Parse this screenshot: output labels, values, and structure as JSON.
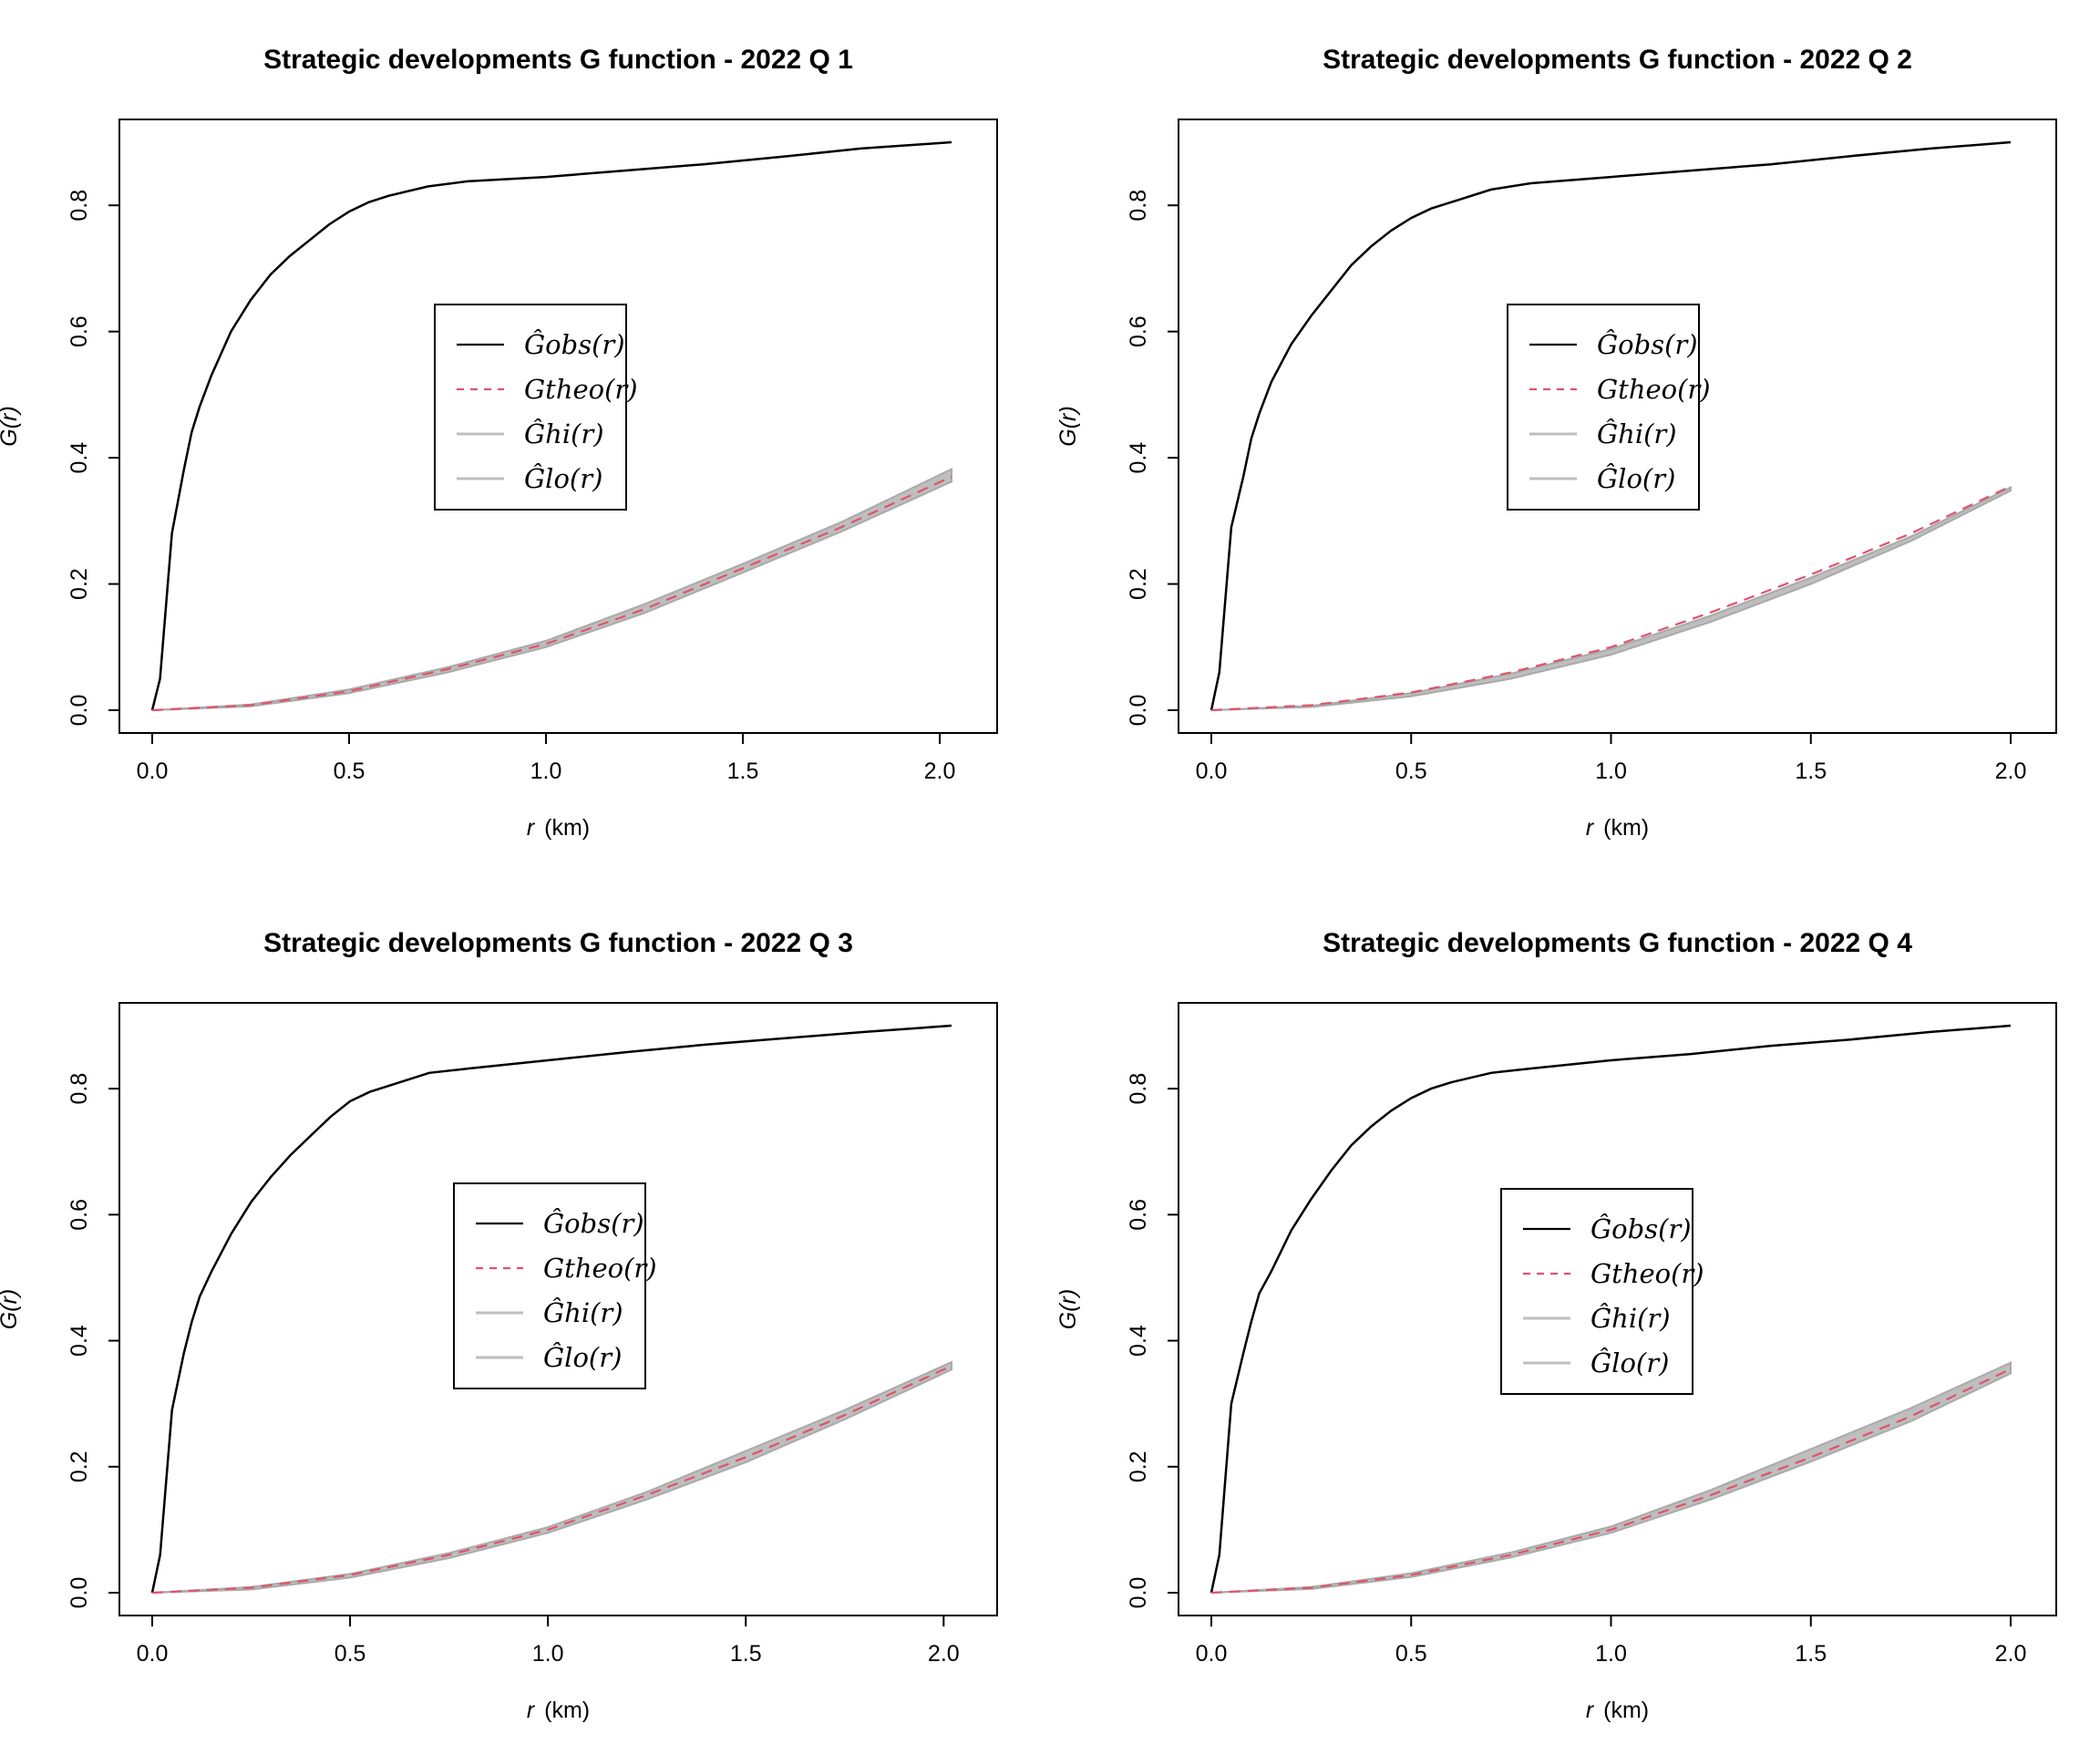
{
  "figure": {
    "panels": [
      {
        "title": "Strategic developments G function -  2022  Q 1",
        "xlabel_var": "r",
        "xlabel_unit": "(km)",
        "ylabel": "G(r)",
        "legend": [
          "Ĝobs(r)",
          "Gtheo(r)",
          "Ĝhi(r)",
          "Ĝlo(r)"
        ]
      },
      {
        "title": "Strategic developments G function -  2022  Q 2",
        "xlabel_var": "r",
        "xlabel_unit": "(km)",
        "ylabel": "G(r)",
        "legend": [
          "Ĝobs(r)",
          "Gtheo(r)",
          "Ĝhi(r)",
          "Ĝlo(r)"
        ]
      },
      {
        "title": "Strategic developments G function -  2022  Q 3",
        "xlabel_var": "r",
        "xlabel_unit": "(km)",
        "ylabel": "G(r)",
        "legend": [
          "Ĝobs(r)",
          "Gtheo(r)",
          "Ĝhi(r)",
          "Ĝlo(r)"
        ]
      },
      {
        "title": "Strategic developments G function -  2022  Q 4",
        "xlabel_var": "r",
        "xlabel_unit": "(km)",
        "ylabel": "G(r)",
        "legend": [
          "Ĝobs(r)",
          "Gtheo(r)",
          "Ĝhi(r)",
          "Ĝlo(r)"
        ]
      }
    ]
  },
  "chart_data": [
    {
      "type": "line",
      "title": "Strategic developments G function -  2022  Q 1",
      "xlabel": "r (km)",
      "ylabel": "G(r)",
      "xlim": [
        0,
        2.03
      ],
      "ylim": [
        0,
        0.9
      ],
      "xticks": [
        "0.0",
        "0.5",
        "1.0",
        "1.5",
        "2.0"
      ],
      "yticks": [
        "0.0",
        "0.2",
        "0.4",
        "0.6",
        "0.8"
      ],
      "legend_position": "center",
      "series": [
        {
          "name": "Ĝobs(r)",
          "style": "solid",
          "color": "#000000",
          "x": [
            0,
            0.02,
            0.05,
            0.08,
            0.1,
            0.12,
            0.15,
            0.2,
            0.25,
            0.3,
            0.35,
            0.4,
            0.45,
            0.5,
            0.55,
            0.6,
            0.7,
            0.8,
            1.0,
            1.2,
            1.4,
            1.6,
            1.8,
            2.03
          ],
          "y": [
            0,
            0.05,
            0.28,
            0.38,
            0.44,
            0.48,
            0.53,
            0.6,
            0.65,
            0.69,
            0.72,
            0.745,
            0.77,
            0.79,
            0.805,
            0.815,
            0.83,
            0.838,
            0.845,
            0.855,
            0.865,
            0.877,
            0.89,
            0.9
          ]
        },
        {
          "name": "Gtheo(r)",
          "style": "dashed",
          "color": "#DF536B",
          "x": [
            0,
            0.25,
            0.5,
            0.75,
            1.0,
            1.25,
            1.5,
            1.75,
            2.03
          ],
          "y": [
            0,
            0.008,
            0.03,
            0.065,
            0.105,
            0.16,
            0.225,
            0.29,
            0.37
          ]
        },
        {
          "name": "Ĝhi(r)",
          "style": "band-upper",
          "color": "#BEBEBE",
          "x": [
            0,
            0.25,
            0.5,
            0.75,
            1.0,
            1.25,
            1.5,
            1.75,
            2.03
          ],
          "y": [
            0,
            0.009,
            0.033,
            0.068,
            0.11,
            0.168,
            0.232,
            0.298,
            0.382
          ]
        },
        {
          "name": "Ĝlo(r)",
          "style": "band-lower",
          "color": "#BEBEBE",
          "x": [
            0,
            0.25,
            0.5,
            0.75,
            1.0,
            1.25,
            1.5,
            1.75,
            2.03
          ],
          "y": [
            0,
            0.006,
            0.027,
            0.06,
            0.1,
            0.154,
            0.218,
            0.283,
            0.362
          ]
        }
      ]
    },
    {
      "type": "line",
      "title": "Strategic developments G function -  2022  Q 2",
      "xlabel": "r (km)",
      "ylabel": "G(r)",
      "xlim": [
        0,
        2.0
      ],
      "ylim": [
        0,
        0.9
      ],
      "xticks": [
        "0.0",
        "0.5",
        "1.0",
        "1.5",
        "2.0"
      ],
      "yticks": [
        "0.0",
        "0.2",
        "0.4",
        "0.6",
        "0.8"
      ],
      "legend_position": "center",
      "series": [
        {
          "name": "Ĝobs(r)",
          "style": "solid",
          "color": "#000000",
          "x": [
            0,
            0.02,
            0.05,
            0.08,
            0.1,
            0.12,
            0.15,
            0.2,
            0.25,
            0.3,
            0.35,
            0.4,
            0.45,
            0.5,
            0.55,
            0.6,
            0.7,
            0.8,
            1.0,
            1.2,
            1.4,
            1.6,
            1.8,
            2.0
          ],
          "y": [
            0,
            0.06,
            0.29,
            0.37,
            0.43,
            0.47,
            0.52,
            0.58,
            0.625,
            0.665,
            0.705,
            0.735,
            0.76,
            0.78,
            0.795,
            0.805,
            0.825,
            0.835,
            0.845,
            0.855,
            0.865,
            0.878,
            0.89,
            0.9
          ]
        },
        {
          "name": "Gtheo(r)",
          "style": "dashed",
          "color": "#DF536B",
          "x": [
            0,
            0.25,
            0.5,
            0.75,
            1.0,
            1.25,
            1.5,
            1.75,
            2.0
          ],
          "y": [
            0,
            0.008,
            0.028,
            0.06,
            0.1,
            0.155,
            0.215,
            0.28,
            0.355
          ]
        },
        {
          "name": "Ĝhi(r)",
          "style": "band-upper",
          "color": "#BEBEBE",
          "x": [
            0,
            0.25,
            0.5,
            0.75,
            1.0,
            1.25,
            1.5,
            1.75,
            2.0
          ],
          "y": [
            0,
            0.007,
            0.027,
            0.058,
            0.097,
            0.15,
            0.21,
            0.275,
            0.353
          ]
        },
        {
          "name": "Ĝlo(r)",
          "style": "band-lower",
          "color": "#BEBEBE",
          "x": [
            0,
            0.25,
            0.5,
            0.75,
            1.0,
            1.25,
            1.5,
            1.75,
            2.0
          ],
          "y": [
            0,
            0.005,
            0.022,
            0.05,
            0.088,
            0.14,
            0.2,
            0.268,
            0.348
          ]
        }
      ]
    },
    {
      "type": "line",
      "title": "Strategic developments G function -  2022  Q 3",
      "xlabel": "r (km)",
      "ylabel": "G(r)",
      "xlim": [
        0,
        2.02
      ],
      "ylim": [
        0,
        0.9
      ],
      "xticks": [
        "0.0",
        "0.5",
        "1.0",
        "1.5",
        "2.0"
      ],
      "yticks": [
        "0.0",
        "0.2",
        "0.4",
        "0.6",
        "0.8"
      ],
      "legend_position": "center",
      "series": [
        {
          "name": "Ĝobs(r)",
          "style": "solid",
          "color": "#000000",
          "x": [
            0,
            0.02,
            0.05,
            0.08,
            0.1,
            0.12,
            0.15,
            0.2,
            0.25,
            0.3,
            0.35,
            0.4,
            0.45,
            0.5,
            0.55,
            0.6,
            0.7,
            0.8,
            1.0,
            1.2,
            1.4,
            1.6,
            1.8,
            2.02
          ],
          "y": [
            0,
            0.06,
            0.29,
            0.38,
            0.43,
            0.47,
            0.51,
            0.57,
            0.62,
            0.66,
            0.695,
            0.725,
            0.755,
            0.78,
            0.795,
            0.805,
            0.825,
            0.832,
            0.845,
            0.858,
            0.87,
            0.88,
            0.89,
            0.9
          ]
        },
        {
          "name": "Gtheo(r)",
          "style": "dashed",
          "color": "#DF536B",
          "x": [
            0,
            0.25,
            0.5,
            0.75,
            1.0,
            1.25,
            1.5,
            1.75,
            2.02
          ],
          "y": [
            0,
            0.008,
            0.028,
            0.06,
            0.1,
            0.155,
            0.215,
            0.282,
            0.36
          ]
        },
        {
          "name": "Ĝhi(r)",
          "style": "band-upper",
          "color": "#BEBEBE",
          "x": [
            0,
            0.25,
            0.5,
            0.75,
            1.0,
            1.25,
            1.5,
            1.75,
            2.02
          ],
          "y": [
            0,
            0.009,
            0.03,
            0.063,
            0.104,
            0.16,
            0.225,
            0.29,
            0.366
          ]
        },
        {
          "name": "Ĝlo(r)",
          "style": "band-lower",
          "color": "#BEBEBE",
          "x": [
            0,
            0.25,
            0.5,
            0.75,
            1.0,
            1.25,
            1.5,
            1.75,
            2.02
          ],
          "y": [
            0,
            0.005,
            0.024,
            0.055,
            0.095,
            0.148,
            0.207,
            0.275,
            0.354
          ]
        }
      ]
    },
    {
      "type": "line",
      "title": "Strategic developments G function -  2022  Q 4",
      "xlabel": "r (km)",
      "ylabel": "G(r)",
      "xlim": [
        0,
        2.0
      ],
      "ylim": [
        0,
        0.9
      ],
      "xticks": [
        "0.0",
        "0.5",
        "1.0",
        "1.5",
        "2.0"
      ],
      "yticks": [
        "0.0",
        "0.2",
        "0.4",
        "0.6",
        "0.8"
      ],
      "legend_position": "center",
      "series": [
        {
          "name": "Ĝobs(r)",
          "style": "solid",
          "color": "#000000",
          "x": [
            0,
            0.02,
            0.05,
            0.08,
            0.1,
            0.12,
            0.15,
            0.2,
            0.25,
            0.3,
            0.35,
            0.4,
            0.45,
            0.5,
            0.55,
            0.6,
            0.7,
            0.8,
            1.0,
            1.2,
            1.4,
            1.6,
            1.8,
            2.0
          ],
          "y": [
            0,
            0.06,
            0.3,
            0.38,
            0.43,
            0.475,
            0.51,
            0.575,
            0.625,
            0.67,
            0.71,
            0.74,
            0.765,
            0.785,
            0.8,
            0.81,
            0.825,
            0.832,
            0.845,
            0.855,
            0.868,
            0.878,
            0.89,
            0.9
          ]
        },
        {
          "name": "Gtheo(r)",
          "style": "dashed",
          "color": "#DF536B",
          "x": [
            0,
            0.25,
            0.5,
            0.75,
            1.0,
            1.25,
            1.5,
            1.75,
            2.0
          ],
          "y": [
            0,
            0.008,
            0.028,
            0.06,
            0.1,
            0.155,
            0.215,
            0.28,
            0.355
          ]
        },
        {
          "name": "Ĝhi(r)",
          "style": "band-upper",
          "color": "#BEBEBE",
          "x": [
            0,
            0.25,
            0.5,
            0.75,
            1.0,
            1.25,
            1.5,
            1.75,
            2.0
          ],
          "y": [
            0,
            0.009,
            0.031,
            0.064,
            0.105,
            0.163,
            0.228,
            0.293,
            0.365
          ]
        },
        {
          "name": "Ĝlo(r)",
          "style": "band-lower",
          "color": "#BEBEBE",
          "x": [
            0,
            0.25,
            0.5,
            0.75,
            1.0,
            1.25,
            1.5,
            1.75,
            2.0
          ],
          "y": [
            0,
            0.006,
            0.025,
            0.056,
            0.095,
            0.148,
            0.208,
            0.272,
            0.348
          ]
        }
      ]
    }
  ]
}
